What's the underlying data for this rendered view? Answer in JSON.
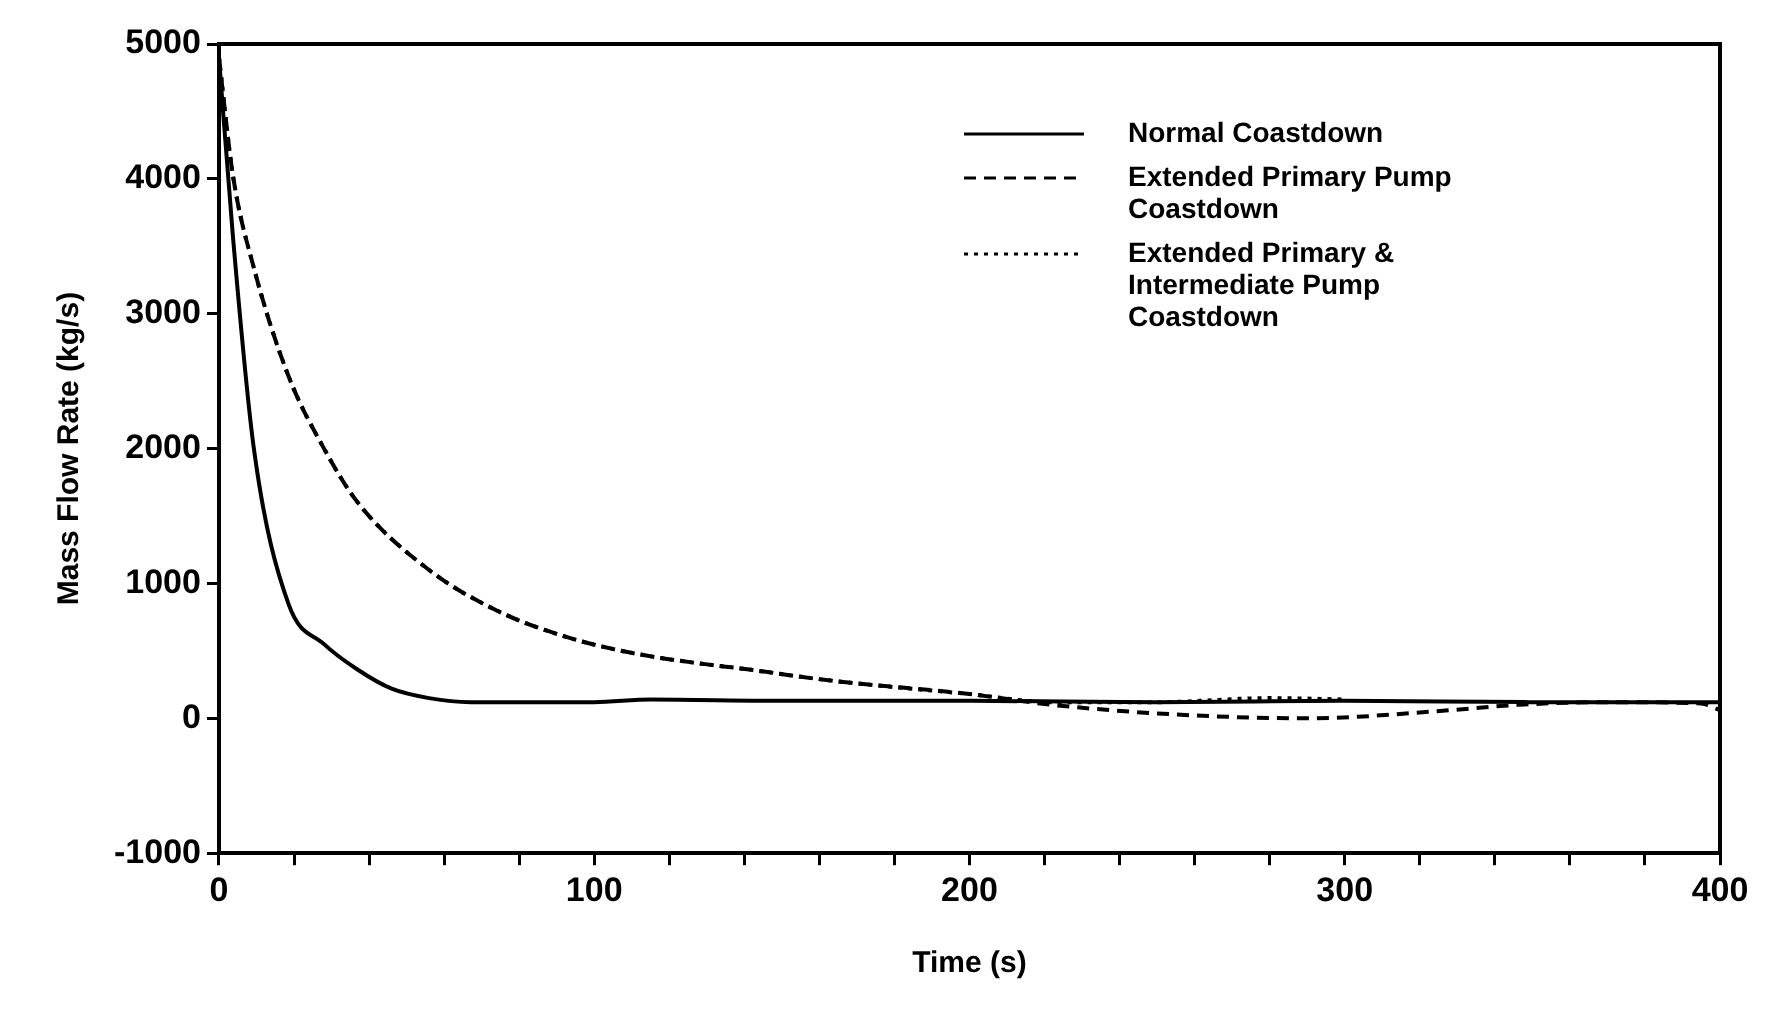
{
  "chart_data": {
    "type": "line",
    "xlabel": "Time (s)",
    "ylabel": "Mass Flow Rate (kg/s)",
    "xlim": [
      0,
      400
    ],
    "xticks": [
      0,
      {
        "value": 20,
        "label": null
      },
      {
        "value": 40,
        "label": null
      },
      {
        "value": 60,
        "label": null
      },
      {
        "value": 80,
        "label": null
      },
      100,
      {
        "value": 120,
        "label": null
      },
      {
        "value": 140,
        "label": null
      },
      {
        "value": 160,
        "label": null
      },
      {
        "value": 180,
        "label": null
      },
      200,
      {
        "value": 220,
        "label": null
      },
      {
        "value": 240,
        "label": null
      },
      {
        "value": 260,
        "label": null
      },
      {
        "value": 280,
        "label": null
      },
      300,
      {
        "value": 320,
        "label": null
      },
      {
        "value": 340,
        "label": null
      },
      {
        "value": 360,
        "label": null
      },
      {
        "value": 380,
        "label": null
      },
      400
    ],
    "ylim": [
      -1000,
      5000
    ],
    "yticks": [
      -1000,
      0,
      1000,
      2000,
      3000,
      4000,
      5000
    ],
    "grid": false,
    "legend": "top right",
    "marker": "none",
    "series": [
      {
        "name": "Normal Coastdown",
        "color": "#000000",
        "line_style": "solid",
        "x": [
          0,
          3.7,
          9.3,
          18.5,
          28,
          37,
          46,
          56,
          67,
          100,
          115,
          150,
          200,
          250,
          300,
          350,
          400
        ],
        "values": [
          4900,
          3580,
          2000,
          850,
          550,
          360,
          220,
          150,
          120,
          120,
          140,
          130,
          130,
          120,
          130,
          120,
          120
        ]
      },
      {
        "name": "Extended Primary Pump Coastdown",
        "color": "#000000",
        "line_style": "dashed",
        "x": [
          0,
          3.7,
          9.3,
          18.5,
          28,
          37,
          56,
          74,
          93,
          111,
          130,
          139,
          163,
          200,
          222,
          254,
          290,
          328,
          346,
          370,
          395,
          400
        ],
        "values": [
          4900,
          4030,
          3340,
          2540,
          2000,
          1600,
          1100,
          800,
          600,
          480,
          400,
          370,
          280,
          180,
          100,
          30,
          0,
          60,
          100,
          120,
          110,
          60
        ]
      },
      {
        "name": "Extended Primary & Intermediate Pump Coastdown",
        "color": "#000000",
        "line_style": "dotted",
        "x": [
          0,
          3.7,
          9.3,
          18.5,
          28,
          37,
          56,
          74,
          93,
          111,
          130,
          139,
          163,
          200,
          222,
          250,
          280,
          300
        ],
        "values": [
          4900,
          4030,
          3340,
          2540,
          2000,
          1600,
          1100,
          800,
          600,
          480,
          400,
          370,
          280,
          180,
          120,
          120,
          150,
          140
        ]
      }
    ]
  }
}
